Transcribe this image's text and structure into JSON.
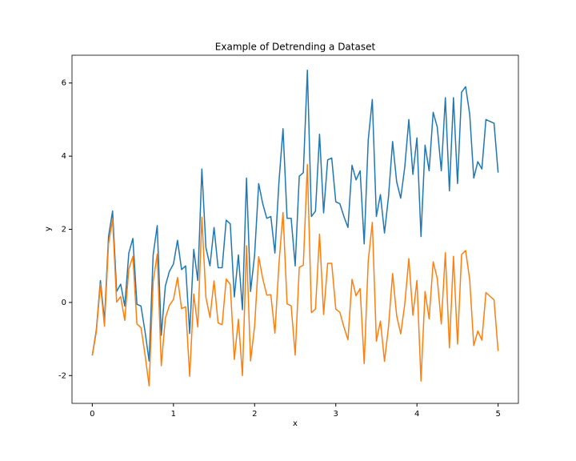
{
  "chart_data": {
    "type": "line",
    "title": "Example of Detrending a Dataset",
    "xlabel": "x",
    "ylabel": "y",
    "x": [
      0,
      0.05,
      0.1,
      0.15,
      0.2,
      0.25,
      0.3,
      0.35,
      0.4,
      0.45,
      0.5,
      0.55,
      0.6,
      0.65,
      0.7,
      0.75,
      0.8,
      0.85,
      0.9,
      0.95,
      1.0,
      1.05,
      1.1,
      1.15,
      1.2,
      1.25,
      1.3,
      1.35,
      1.4,
      1.45,
      1.5,
      1.55,
      1.6,
      1.65,
      1.7,
      1.75,
      1.8,
      1.85,
      1.9,
      1.95,
      2.0,
      2.05,
      2.1,
      2.15,
      2.2,
      2.25,
      2.3,
      2.35,
      2.4,
      2.45,
      2.5,
      2.55,
      2.6,
      2.65,
      2.7,
      2.75,
      2.8,
      2.85,
      2.9,
      2.95,
      3.0,
      3.05,
      3.1,
      3.15,
      3.2,
      3.25,
      3.3,
      3.35,
      3.4,
      3.45,
      3.5,
      3.55,
      3.6,
      3.65,
      3.7,
      3.75,
      3.8,
      3.85,
      3.9,
      3.95,
      4.0,
      4.05,
      4.1,
      4.15,
      4.2,
      4.25,
      4.3,
      4.35,
      4.4,
      4.45,
      4.5,
      4.55,
      4.6,
      4.65,
      4.7,
      4.75,
      4.8,
      4.85,
      4.9,
      4.95,
      5.0
    ],
    "series": [
      {
        "color": "#1f77b4",
        "values": [
          -1.45,
          -0.75,
          0.6,
          -0.5,
          1.8,
          2.5,
          0.3,
          0.5,
          -0.1,
          1.35,
          1.75,
          -0.05,
          -0.1,
          -0.8,
          -1.6,
          1.3,
          2.1,
          -0.9,
          0.45,
          0.85,
          1.05,
          1.7,
          0.9,
          1.0,
          -0.85,
          1.45,
          0.6,
          3.65,
          1.5,
          1.0,
          2.05,
          0.95,
          0.95,
          2.25,
          2.15,
          0.15,
          1.3,
          -0.2,
          3.4,
          0.3,
          1.3,
          3.25,
          2.7,
          2.3,
          2.35,
          1.35,
          3.3,
          4.75,
          2.3,
          2.3,
          1.0,
          3.45,
          3.55,
          6.35,
          2.35,
          2.5,
          4.6,
          2.45,
          3.9,
          3.95,
          2.75,
          2.7,
          2.35,
          2.05,
          3.75,
          3.35,
          3.6,
          1.6,
          4.45,
          5.55,
          2.35,
          2.95,
          1.9,
          2.9,
          4.4,
          3.3,
          2.85,
          3.7,
          5.0,
          3.5,
          4.5,
          1.8,
          4.3,
          3.6,
          5.2,
          4.8,
          3.6,
          5.6,
          3.05,
          5.6,
          3.25,
          5.75,
          5.9,
          5.15,
          3.4,
          3.85,
          3.65,
          5.0,
          4.95,
          4.9,
          3.55
        ]
      },
      {
        "color": "#ff7f0e",
        "values": [
          -1.45,
          -0.8,
          0.5,
          -0.65,
          1.61,
          2.26,
          0.01,
          0.16,
          -0.49,
          0.91,
          1.26,
          -0.59,
          -0.69,
          -1.43,
          -2.28,
          0.57,
          1.32,
          -1.73,
          -0.43,
          -0.08,
          0.08,
          0.68,
          -0.17,
          -0.12,
          -2.02,
          0.23,
          -0.67,
          2.33,
          0.14,
          -0.41,
          0.59,
          -0.56,
          -0.61,
          0.64,
          0.49,
          -1.56,
          -0.46,
          -2.0,
          1.55,
          -1.6,
          -0.65,
          1.25,
          0.65,
          0.2,
          0.21,
          -0.84,
          1.06,
          2.46,
          -0.04,
          -0.09,
          -1.44,
          0.96,
          1.02,
          3.77,
          -0.28,
          -0.18,
          1.87,
          -0.33,
          1.07,
          1.07,
          -0.18,
          -0.27,
          -0.67,
          -1.02,
          0.63,
          0.18,
          0.38,
          -1.67,
          1.14,
          2.19,
          -1.06,
          -0.51,
          -1.61,
          -0.66,
          0.79,
          -0.36,
          -0.86,
          -0.05,
          1.2,
          -0.35,
          0.6,
          -2.15,
          0.3,
          -0.45,
          1.11,
          0.66,
          -0.59,
          1.36,
          -1.24,
          1.26,
          -1.14,
          1.31,
          1.42,
          0.62,
          -1.18,
          -0.78,
          -1.03,
          0.27,
          0.17,
          0.07,
          -1.33
        ]
      }
    ],
    "xlim": [
      -0.25,
      5.25
    ],
    "ylim": [
      -2.76,
      6.76
    ],
    "xticks": [
      0,
      1,
      2,
      3,
      4,
      5
    ],
    "yticks": [
      -2,
      0,
      2,
      4,
      6
    ]
  }
}
